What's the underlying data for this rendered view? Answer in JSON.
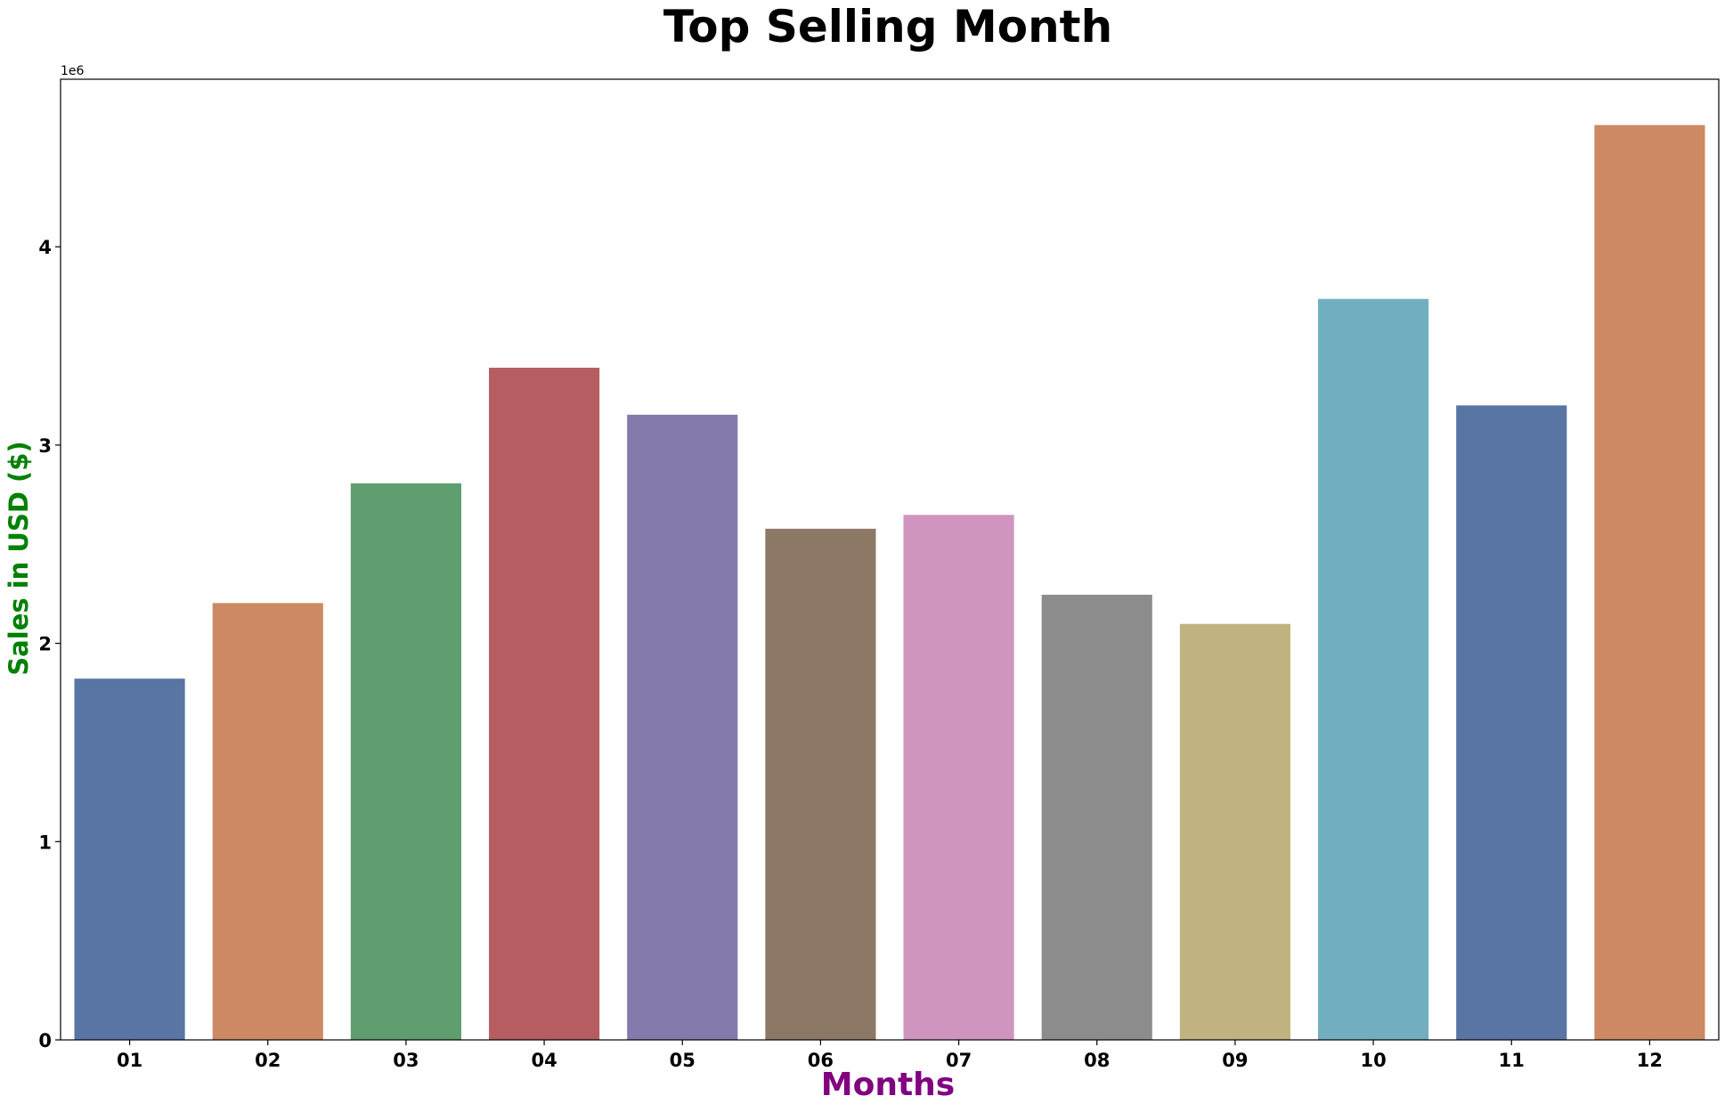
{
  "chart_data": {
    "type": "bar",
    "title": "Top Selling Month",
    "xlabel": "Months",
    "ylabel": "Sales in USD ($)",
    "y_offset_label": "1e6",
    "categories": [
      "01",
      "02",
      "03",
      "04",
      "05",
      "06",
      "07",
      "08",
      "09",
      "10",
      "11",
      "12"
    ],
    "values": [
      1822000,
      2203000,
      2807000,
      3390000,
      3153000,
      2578000,
      2648000,
      2245000,
      2098000,
      3737000,
      3200000,
      4614000
    ],
    "colors": [
      "#5975a4",
      "#cc8963",
      "#5f9e6e",
      "#b55d60",
      "#857aab",
      "#8d7866",
      "#d095bf",
      "#8c8c8c",
      "#c1b37f",
      "#71aec0",
      "#5975a4",
      "#cc8963"
    ],
    "yticks": [
      0,
      1,
      2,
      3,
      4
    ],
    "ytick_labels": [
      "0",
      "1",
      "2",
      "3",
      "4"
    ],
    "ylim": [
      0,
      4845000
    ],
    "grid": false,
    "legend": "none",
    "colors_meta": {
      "xlabel_color": "#800080",
      "ylabel_color": "#008000"
    }
  }
}
